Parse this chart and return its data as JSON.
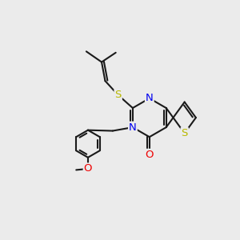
{
  "bg_color": "#ebebeb",
  "bond_color": "#1a1a1a",
  "bond_width": 1.5,
  "atom_colors": {
    "S": "#b8b800",
    "N": "#0000ee",
    "O": "#ee0000",
    "C": "#1a1a1a"
  },
  "font_size": 9.5
}
